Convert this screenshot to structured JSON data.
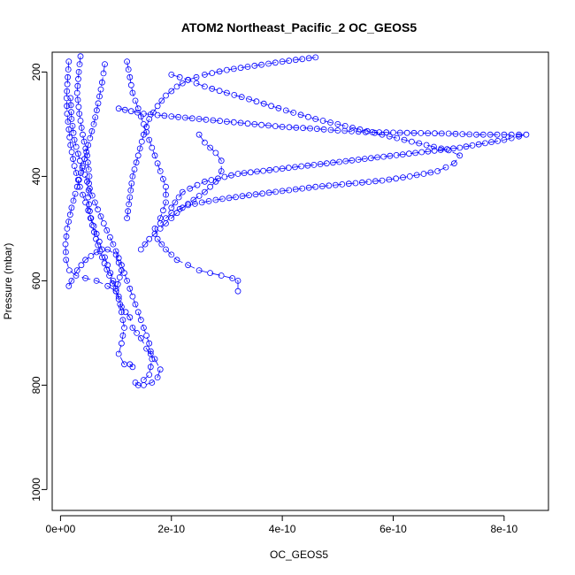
{
  "chart_data": {
    "type": "line",
    "title": "ATOM2 Northeast_Pacific_2 OC_GEOS5",
    "xlabel": "OC_GEOS5",
    "ylabel": "Pressure (mbar)",
    "xlim": [
      -1.5e-11,
      8.8e-10
    ],
    "ylim": [
      1040,
      162
    ],
    "y_reversed": true,
    "x_ticks": [
      0,
      2e-10,
      4e-10,
      6e-10,
      8e-10
    ],
    "x_tick_labels": [
      "0e+00",
      "2e-10",
      "4e-10",
      "6e-10",
      "8e-10"
    ],
    "y_ticks": [
      200,
      400,
      600,
      800,
      1000
    ],
    "y_tick_labels": [
      "200",
      "400",
      "600",
      "800",
      "1000"
    ],
    "marker": "open-circle",
    "line_style": "dashed",
    "color": "#0000ff",
    "series": [
      {
        "x": [
          3.6e-11,
          3.3e-11,
          3e-11,
          3.4e-11,
          4e-11,
          4.8e-11,
          5.2e-11,
          5e-11,
          5.4e-11,
          6.4e-11,
          7.5e-11,
          8.8e-11,
          1e-10,
          1.1e-10,
          1.25e-10,
          1.3e-10,
          1.45e-10,
          1.55e-10,
          1.7e-10,
          1.8e-10,
          1.75e-10,
          1.65e-10,
          1.5e-10,
          1.4e-10,
          1.35e-10
        ],
        "y": [
          170,
          200,
          240,
          280,
          320,
          360,
          400,
          440,
          480,
          520,
          555,
          590,
          620,
          650,
          670,
          690,
          710,
          730,
          750,
          770,
          785,
          795,
          800,
          800,
          795
        ]
      },
      {
        "x": [
          1.5e-11,
          1.3e-11,
          1.1e-11,
          1.2e-11,
          1.5e-11,
          1.8e-11,
          2.5e-11,
          3.5e-11,
          4.5e-11,
          5.5e-11,
          6.5e-11,
          7.5e-11,
          8.5e-11,
          9.5e-11,
          1.05e-10,
          1.1e-10,
          1.15e-10,
          1.1e-10,
          1.05e-10,
          1.15e-10,
          1.25e-10,
          1.3e-10
        ],
        "y": [
          180,
          210,
          250,
          280,
          310,
          340,
          380,
          420,
          450,
          480,
          510,
          540,
          570,
          600,
          630,
          660,
          690,
          720,
          740,
          760,
          760,
          765
        ]
      },
      {
        "x": [
          8e-11,
          7.5e-11,
          6.8e-11,
          6e-11,
          5e-11,
          4e-11,
          3e-11,
          2e-11,
          1.2e-11,
          9e-12,
          1e-11,
          1.6e-11,
          2.8e-11,
          4.5e-11,
          6.5e-11,
          8.5e-11,
          1e-10,
          1.1e-10,
          1e-10,
          8.5e-11,
          6.5e-11,
          4.5e-11,
          3e-11,
          2e-11,
          1.5e-11
        ],
        "y": [
          185,
          220,
          260,
          300,
          340,
          380,
          420,
          460,
          500,
          530,
          560,
          580,
          590,
          595,
          600,
          610,
          620,
          580,
          550,
          540,
          545,
          560,
          580,
          600,
          610
        ]
      },
      {
        "x": [
          1.2e-10,
          1.25e-10,
          1.3e-10,
          1.4e-10,
          1.5e-10,
          1.6e-10,
          1.7e-10,
          1.8e-10,
          1.9e-10,
          1.9e-10,
          1.8e-10,
          1.7e-10,
          1.75e-10,
          1.9e-10,
          2.1e-10,
          2.3e-10,
          2.5e-10,
          2.7e-10,
          2.9e-10,
          3.1e-10,
          3.2e-10,
          3.2e-10
        ],
        "y": [
          180,
          210,
          240,
          270,
          300,
          330,
          360,
          390,
          420,
          450,
          480,
          500,
          520,
          540,
          560,
          570,
          580,
          585,
          590,
          595,
          600,
          620
        ]
      },
      {
        "x": [
          1.05e-10,
          1.5e-10,
          2e-10,
          2.5e-10,
          3e-10,
          3.5e-10,
          4e-10,
          4.5e-10,
          5e-10,
          5.5e-10,
          6e-10,
          6.5e-10,
          7e-10,
          7.5e-10,
          8e-10,
          8.4e-10,
          8e-10,
          7.2e-10,
          6.4e-10,
          5.6e-10,
          4.8e-10,
          4e-10,
          3.2e-10,
          2.6e-10,
          2.2e-10,
          2e-10
        ],
        "y": [
          270,
          280,
          285,
          290,
          295,
          300,
          305,
          308,
          312,
          315,
          316,
          317,
          318,
          320,
          320,
          320,
          330,
          345,
          355,
          365,
          375,
          385,
          395,
          410,
          430,
          460
        ]
      },
      {
        "x": [
          2e-10,
          2.3e-10,
          2.6e-10,
          3e-10,
          3.4e-10,
          3.8e-10,
          4.2e-10,
          4.6e-10,
          5e-10,
          5.4e-10,
          5.8e-10,
          6.2e-10,
          6.6e-10,
          7e-10,
          7.2e-10,
          7.1e-10,
          6.8e-10,
          6.3e-10,
          5.8e-10,
          5.2e-10,
          4.6e-10,
          4e-10,
          3.4e-10,
          2.8e-10,
          2.3e-10,
          2e-10,
          1.8e-10
        ],
        "y": [
          205,
          215,
          228,
          240,
          252,
          265,
          278,
          290,
          300,
          310,
          320,
          330,
          340,
          350,
          360,
          375,
          390,
          400,
          408,
          414,
          420,
          428,
          436,
          445,
          455,
          470,
          490
        ]
      },
      {
        "x": [
          4.6e-10,
          4e-10,
          3.5e-10,
          3e-10,
          2.6e-10,
          2.3e-10,
          2.1e-10,
          1.9e-10,
          1.75e-10,
          1.6e-10,
          1.5e-10,
          1.4e-10,
          1.3e-10,
          1.25e-10,
          1.2e-10
        ],
        "y": [
          172,
          180,
          188,
          196,
          205,
          215,
          228,
          245,
          265,
          290,
          320,
          360,
          400,
          440,
          480
        ]
      },
      {
        "x": [
          1.8e-11,
          2e-11,
          2.5e-11,
          3.5e-11,
          4.8e-11,
          6.2e-11,
          7.8e-11,
          9.5e-11,
          1.1e-10,
          1.2e-10,
          1.3e-10,
          1.4e-10,
          1.5e-10,
          1.6e-10,
          1.65e-10,
          1.6e-10,
          1.5e-10
        ],
        "y": [
          250,
          290,
          330,
          370,
          410,
          450,
          490,
          530,
          570,
          600,
          630,
          660,
          690,
          720,
          750,
          780,
          790
        ]
      },
      {
        "x": [
          2.5e-10,
          2.6e-10,
          2.7e-10,
          2.8e-10,
          2.9e-10,
          2.9e-10,
          2.8e-10,
          2.6e-10,
          2.4e-10,
          2.2e-10,
          2e-10,
          1.8e-10,
          1.6e-10,
          1.45e-10
        ],
        "y": [
          320,
          335,
          345,
          355,
          370,
          390,
          410,
          430,
          445,
          460,
          480,
          500,
          520,
          540
        ]
      }
    ]
  }
}
